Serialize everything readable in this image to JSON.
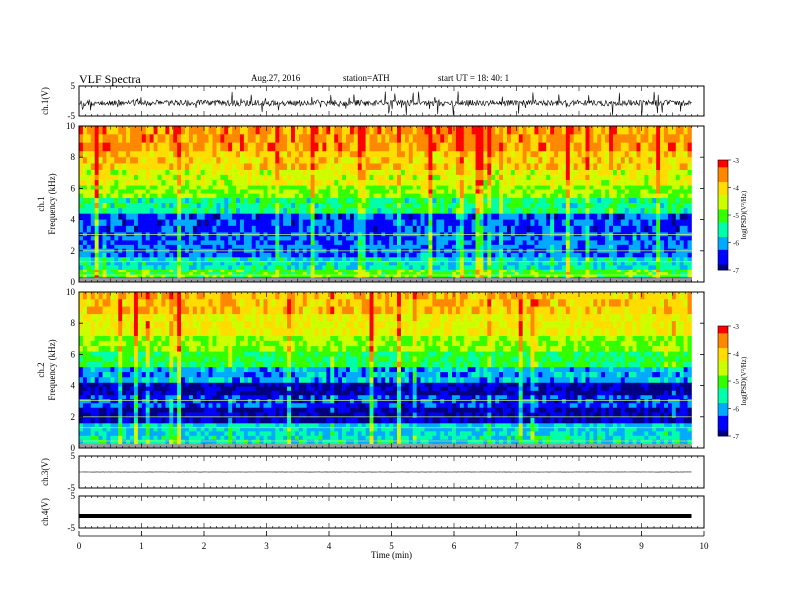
{
  "header": {
    "title": "VLF  Spectra",
    "date": "Aug.27, 2016",
    "station": "station=ATH",
    "start": "start  UT  =    18: 40: 1"
  },
  "chart_data": [
    {
      "type": "line",
      "name": "ch1-waveform",
      "ylabel": "ch.1(V)",
      "ylim": [
        -5,
        5
      ],
      "yticks": [
        "5",
        "-5"
      ],
      "xlim": [
        0,
        10
      ],
      "trace_baseline": 0
    },
    {
      "type": "heatmap",
      "name": "ch1-spectrogram",
      "ylabel": "ch.1\nFrequency  (kHz)",
      "ylabel_lines": [
        "ch.1",
        "Frequency  (kHz)"
      ],
      "ylim": [
        0,
        10
      ],
      "yticks": [
        "0",
        "2",
        "4",
        "6",
        "8",
        "10"
      ],
      "xlim": [
        0,
        9.8
      ],
      "colorbar": {
        "label": "log(PSD)(V²/Hz)",
        "range": [
          -7,
          -3
        ],
        "ticks": [
          "-3",
          "-4",
          "-5",
          "-6",
          "-7"
        ]
      },
      "rows_khz": [
        {
          "f": [
            0,
            0.3
          ],
          "level": -6.9
        },
        {
          "f": [
            0.3,
            0.8
          ],
          "level": -5.0
        },
        {
          "f": [
            0.8,
            1.6
          ],
          "level": -5.6
        },
        {
          "f": [
            1.6,
            2.4
          ],
          "level": -6.2
        },
        {
          "f": [
            2.4,
            3.2
          ],
          "level": -6.2
        },
        {
          "f": [
            3.2,
            4.4
          ],
          "level": -6.4
        },
        {
          "f": [
            4.4,
            5.4
          ],
          "level": -5.4
        },
        {
          "f": [
            5.4,
            6.2
          ],
          "level": -4.8
        },
        {
          "f": [
            6.2,
            7.2
          ],
          "level": -4.4
        },
        {
          "f": [
            7.2,
            8.4
          ],
          "level": -4.0
        },
        {
          "f": [
            8.4,
            10
          ],
          "level": -3.6
        }
      ]
    },
    {
      "type": "heatmap",
      "name": "ch2-spectrogram",
      "ylabel": "ch.2\nFrequency  (kHz)",
      "ylabel_lines": [
        "ch.2",
        "Frequency  (kHz)"
      ],
      "ylim": [
        0,
        10
      ],
      "yticks": [
        "0",
        "2",
        "4",
        "6",
        "8",
        "10"
      ],
      "xlim": [
        0,
        9.8
      ],
      "colorbar": {
        "label": "log(PSD)(V²/Hz)",
        "range": [
          -7,
          -3
        ],
        "ticks": [
          "-3",
          "-4",
          "-5",
          "-6",
          "-7"
        ]
      },
      "rows_khz": [
        {
          "f": [
            0,
            0.8
          ],
          "level": -5.6
        },
        {
          "f": [
            0.8,
            1.6
          ],
          "level": -5.8
        },
        {
          "f": [
            1.6,
            2.6
          ],
          "level": -6.8
        },
        {
          "f": [
            2.6,
            3.4
          ],
          "level": -6.4
        },
        {
          "f": [
            3.4,
            4.2
          ],
          "level": -6.9
        },
        {
          "f": [
            4.2,
            5.2
          ],
          "level": -6.0
        },
        {
          "f": [
            5.2,
            6.2
          ],
          "level": -5.2
        },
        {
          "f": [
            6.2,
            7.2
          ],
          "level": -4.8
        },
        {
          "f": [
            7.2,
            8.6
          ],
          "level": -4.3
        },
        {
          "f": [
            8.6,
            10
          ],
          "level": -3.9
        }
      ]
    },
    {
      "type": "line",
      "name": "ch3-waveform",
      "ylabel": "ch.3(V)",
      "ylim": [
        -5,
        5
      ],
      "yticks": [
        "5",
        "-5"
      ],
      "xlim": [
        0,
        10
      ],
      "trace_baseline": 0
    },
    {
      "type": "line",
      "name": "ch4-waveform",
      "ylabel": "ch.4(V)",
      "ylim": [
        -5,
        5
      ],
      "yticks": [
        "5",
        "-5"
      ],
      "xlim": [
        0,
        10
      ],
      "trace_baseline": 0
    }
  ],
  "x_axis": {
    "label": "Time  (min)",
    "ticks": [
      "0",
      "1",
      "2",
      "3",
      "4",
      "5",
      "6",
      "7",
      "8",
      "9",
      "10"
    ],
    "range": [
      0,
      10
    ],
    "data_end": 9.8
  },
  "colors": {
    "colormap": [
      "#000080",
      "#0000ff",
      "#00aaff",
      "#00ffaa",
      "#33ff00",
      "#ccff00",
      "#ffdd00",
      "#ff8800",
      "#ff0000"
    ],
    "trace": "#000000",
    "axis": "#000000"
  }
}
